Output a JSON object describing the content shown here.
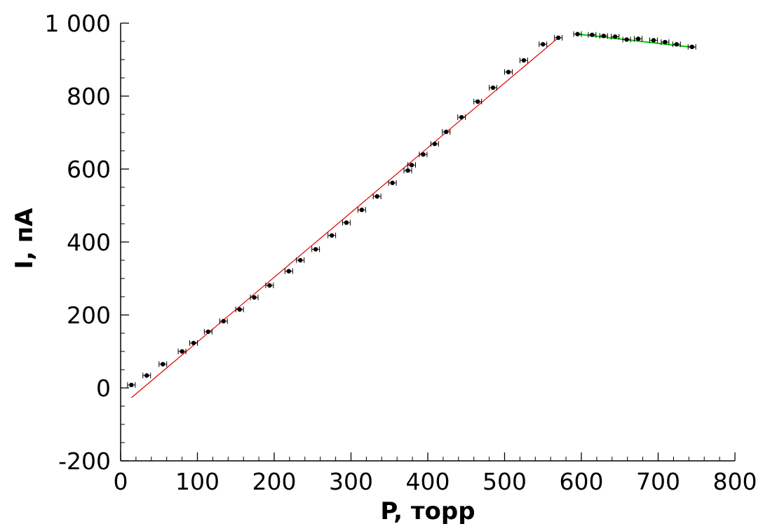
{
  "chart_data": {
    "type": "scatter",
    "xlabel": "P, торр",
    "ylabel": "I, пА",
    "xlim": [
      0,
      800
    ],
    "ylim": [
      -200,
      1000
    ],
    "x_ticks": [
      0,
      100,
      200,
      300,
      400,
      500,
      600,
      700,
      800
    ],
    "x_tick_labels": [
      "0",
      "100",
      "200",
      "300",
      "400",
      "500",
      "600",
      "700",
      "800"
    ],
    "y_ticks": [
      -200,
      0,
      200,
      400,
      600,
      800,
      1000
    ],
    "y_tick_labels": [
      "-200",
      "0",
      "200",
      "400",
      "600",
      "800",
      "1 000"
    ],
    "grid": false,
    "x_error": 5,
    "series": [
      {
        "type": "scatter",
        "color": "#000000",
        "x": [
          14,
          34,
          55,
          80,
          95,
          114,
          134,
          155,
          174,
          194,
          219,
          234,
          254,
          275,
          294,
          314,
          334,
          354,
          374,
          379,
          394,
          409,
          424,
          444,
          465,
          485,
          505,
          525,
          550,
          570,
          595,
          614,
          629,
          644,
          659,
          674,
          694,
          709,
          724,
          744
        ],
        "y": [
          8,
          34,
          65,
          100,
          123,
          154,
          183,
          215,
          248,
          281,
          320,
          350,
          380,
          418,
          453,
          488,
          525,
          562,
          596,
          611,
          640,
          669,
          702,
          742,
          785,
          823,
          866,
          898,
          942,
          960,
          970,
          968,
          965,
          963,
          955,
          957,
          953,
          948,
          942,
          935
        ]
      },
      {
        "type": "line",
        "color": "#e00000",
        "x": [
          14,
          570
        ],
        "y": [
          -27,
          960
        ]
      },
      {
        "type": "line",
        "color": "#00cc00",
        "x": [
          595,
          748
        ],
        "y": [
          970,
          933
        ]
      }
    ]
  }
}
